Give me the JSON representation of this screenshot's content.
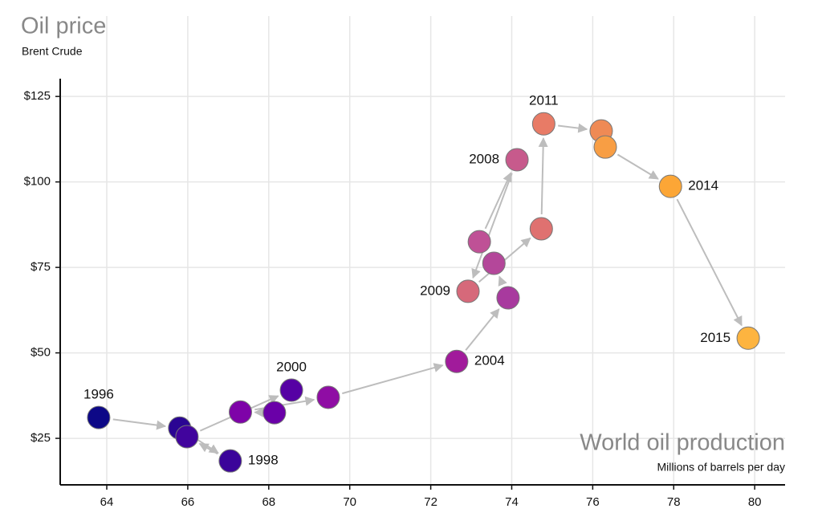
{
  "chart_data": {
    "type": "scatter",
    "connected": true,
    "title": "Oil price",
    "subtitle": "Brent Crude",
    "x_label": "World oil production",
    "x_sublabel": "Millions of barrels per day",
    "x": [
      63.8,
      65.8,
      67.05,
      65.98,
      68.56,
      68.14,
      67.3,
      69.47,
      72.64,
      73.91,
      73.56,
      73.2,
      74.13,
      72.92,
      74.73,
      74.79,
      76.21,
      76.31,
      77.92,
      79.84
    ],
    "y": [
      31.1,
      28.0,
      18.4,
      25.5,
      39.1,
      32.5,
      32.7,
      37.0,
      47.5,
      66.1,
      76.2,
      82.5,
      106.5,
      68.0,
      86.3,
      117.0,
      114.9,
      110.2,
      98.7,
      54.3
    ],
    "labels": [
      "1996",
      null,
      "1998",
      null,
      "2000",
      null,
      null,
      null,
      "2004",
      null,
      null,
      null,
      "2008",
      "2009",
      null,
      "2011",
      null,
      null,
      "2014",
      "2015"
    ],
    "colors": [
      "#0d0887",
      "#2a0593",
      "#3b049a",
      "#41049d",
      "#5601a4",
      "#6a00a8",
      "#7e03a8",
      "#8f0da4",
      "#a11b9b",
      "#a83a9e",
      "#b4479a",
      "#bf5196",
      "#c75a8c",
      "#d6697a",
      "#df7170",
      "#e87b66",
      "#ef8a55",
      "#f89e44",
      "#fca636",
      "#fdb440"
    ],
    "xlim": [
      62.85,
      80.75
    ],
    "ylim": [
      11.4,
      130.2
    ],
    "xticks": [
      64,
      66,
      68,
      70,
      72,
      74,
      76,
      78,
      80
    ],
    "yticks": [
      {
        "value": 25,
        "label": "$25"
      },
      {
        "value": 50,
        "label": "$50"
      },
      {
        "value": 75,
        "label": "$75"
      },
      {
        "value": 100,
        "label": "$100"
      },
      {
        "value": 125,
        "label": "$125"
      }
    ],
    "grid": true
  }
}
